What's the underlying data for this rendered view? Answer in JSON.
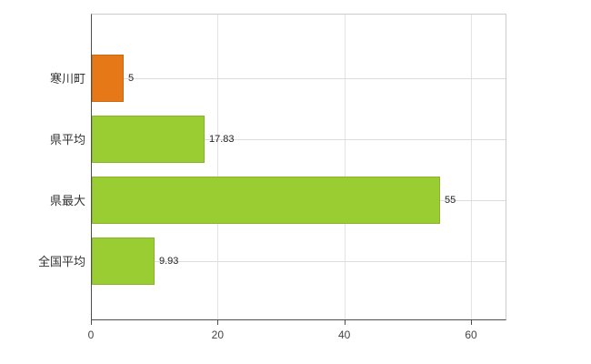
{
  "chart_data": {
    "type": "bar",
    "orientation": "horizontal",
    "title": "",
    "xlabel": "",
    "ylabel": "",
    "categories": [
      "寒川町",
      "県平均",
      "県最大",
      "全国平均"
    ],
    "values": [
      5,
      17.83,
      55,
      9.93
    ],
    "value_labels": [
      "5",
      "17.83",
      "55",
      "9.93"
    ],
    "bar_colors": [
      "#e67817",
      "#9acd32",
      "#9acd32",
      "#9acd32"
    ],
    "x_ticks": [
      0,
      20,
      40,
      60
    ],
    "x_tick_labels": [
      "0",
      "20",
      "40",
      "60"
    ],
    "xlim": [
      0,
      65.6
    ],
    "grid": true,
    "legend": "none"
  },
  "colors": {
    "orange": "#e67817",
    "green": "#9acd32",
    "grid_light": "#e3e3e3",
    "grid": "#dcdcdc",
    "axis_dark": "#4d4d4d",
    "axis_light": "#cccccc",
    "text": "#333333"
  }
}
